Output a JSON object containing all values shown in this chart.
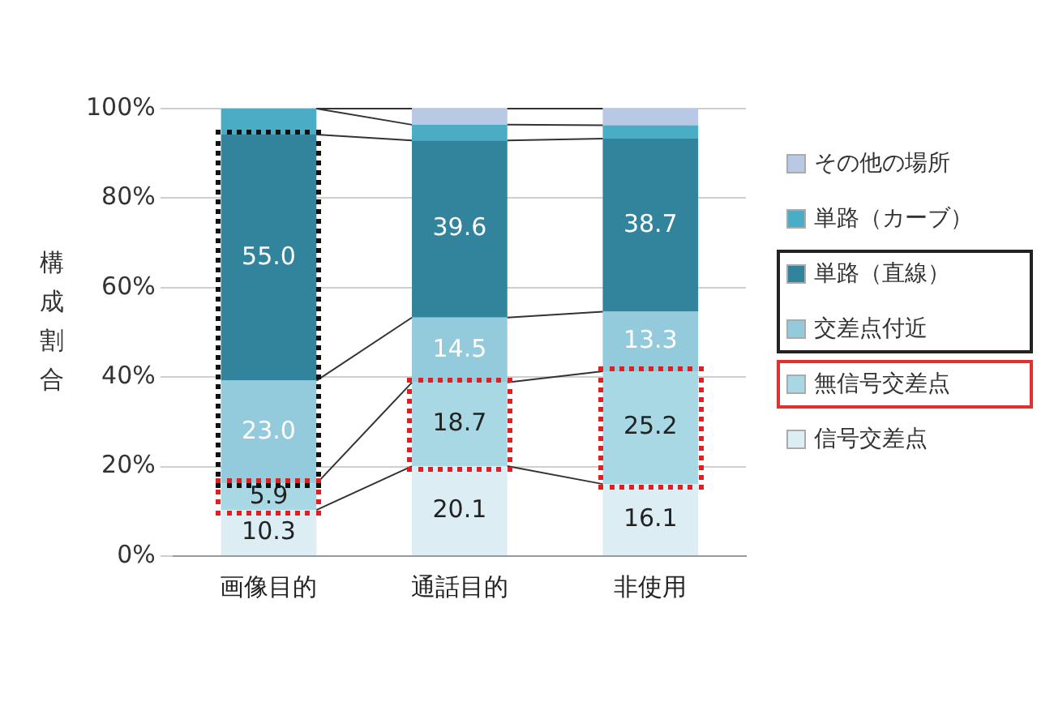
{
  "chart_data": {
    "type": "bar",
    "stacked": true,
    "ylabel": "構成割合",
    "categories": [
      "画像目的",
      "通話目的",
      "非使用"
    ],
    "series": [
      {
        "name": "信号交差点",
        "color": "#dcedf4",
        "values": [
          10.3,
          20.1,
          16.1
        ],
        "value_labels": [
          "10.3",
          "20.1",
          "16.1"
        ]
      },
      {
        "name": "無信号交差点",
        "color": "#a9d8e5",
        "values": [
          5.9,
          18.7,
          25.2
        ],
        "value_labels": [
          "5.9",
          "18.7",
          "25.2"
        ]
      },
      {
        "name": "交差点付近",
        "color": "#93cbdc",
        "values": [
          23.0,
          14.5,
          13.3
        ],
        "value_labels": [
          "23.0",
          "14.5",
          "13.3"
        ]
      },
      {
        "name": "単路（直線）",
        "color": "#31849b",
        "values": [
          55.0,
          39.6,
          38.7
        ],
        "value_labels": [
          "55.0",
          "39.6",
          "38.7"
        ]
      },
      {
        "name": "単路（カーブ）",
        "color": "#4bacc6",
        "values": [
          5.8,
          3.5,
          3.0
        ],
        "value_labels": [
          null,
          null,
          null
        ]
      },
      {
        "name": "その他の場所",
        "color": "#b9c8e4",
        "values": [
          null,
          3.6,
          3.7
        ],
        "value_labels": [
          null,
          null,
          null
        ]
      }
    ],
    "ylim": [
      0,
      100
    ],
    "yticks": [
      {
        "value": 0,
        "label": "0%"
      },
      {
        "value": 20,
        "label": "20%"
      },
      {
        "value": 40,
        "label": "40%"
      },
      {
        "value": 60,
        "label": "60%"
      },
      {
        "value": 80,
        "label": "80%"
      },
      {
        "value": 100,
        "label": "100%"
      }
    ],
    "grid": "y",
    "legend": "right"
  }
}
